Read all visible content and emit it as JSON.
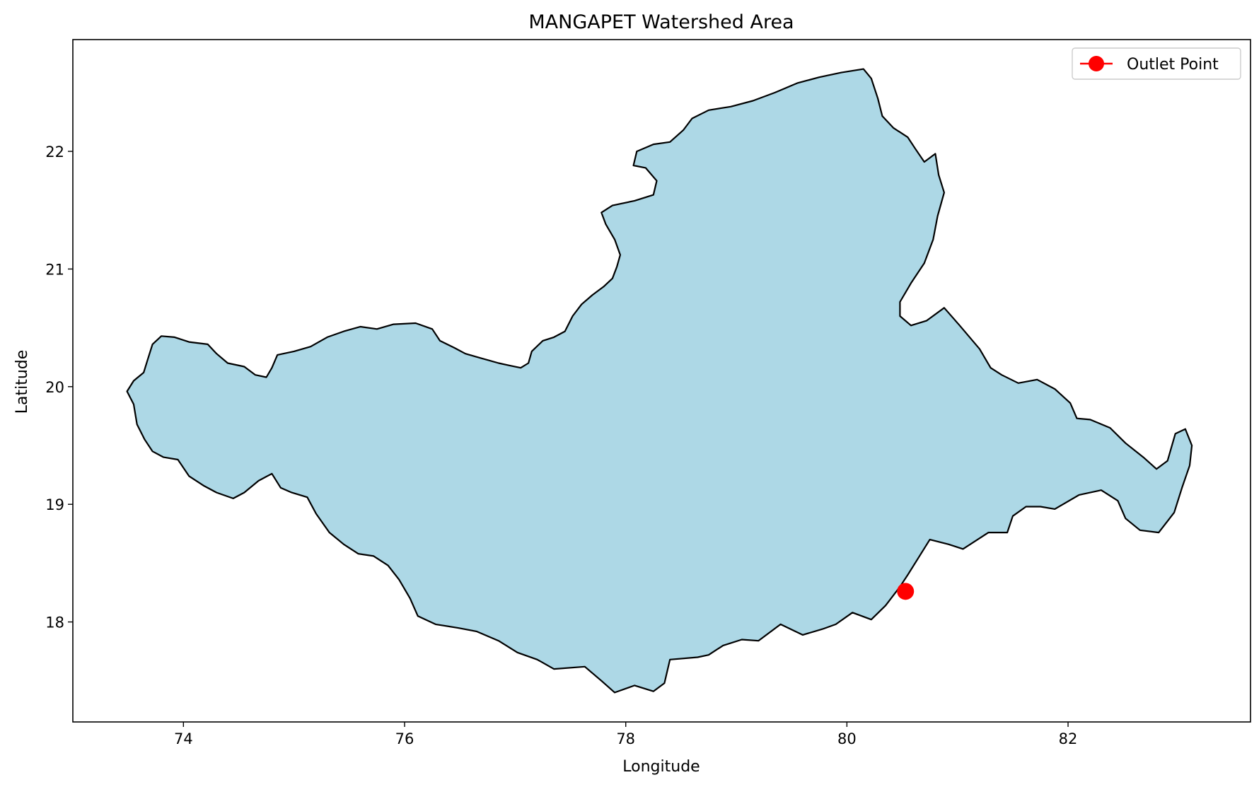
{
  "title": "MANGAPET Watershed Area",
  "xlabel": "Longitude",
  "ylabel": "Latitude",
  "legend": {
    "label": "Outlet Point",
    "placement": "top-right"
  },
  "colors": {
    "fill": "#add8e6",
    "boundary": "#000000",
    "outlet": "#ff0000"
  },
  "chart_data": {
    "type": "map",
    "xlim": [
      73.0,
      83.65
    ],
    "ylim": [
      17.15,
      22.95
    ],
    "x_ticks": [
      "74",
      "76",
      "78",
      "80",
      "82"
    ],
    "y_ticks": [
      "18",
      "19",
      "20",
      "21",
      "22"
    ],
    "grid": false,
    "outlet": {
      "lon": 80.53,
      "lat": 18.26
    },
    "boundary": [
      [
        73.49,
        19.96
      ],
      [
        73.55,
        20.05
      ],
      [
        73.64,
        20.12
      ],
      [
        73.68,
        20.24
      ],
      [
        73.72,
        20.36
      ],
      [
        73.8,
        20.43
      ],
      [
        73.92,
        20.42
      ],
      [
        74.05,
        20.38
      ],
      [
        74.22,
        20.36
      ],
      [
        74.3,
        20.28
      ],
      [
        74.4,
        20.2
      ],
      [
        74.55,
        20.17
      ],
      [
        74.65,
        20.1
      ],
      [
        74.75,
        20.08
      ],
      [
        74.8,
        20.16
      ],
      [
        74.85,
        20.27
      ],
      [
        75.0,
        20.3
      ],
      [
        75.15,
        20.34
      ],
      [
        75.3,
        20.42
      ],
      [
        75.45,
        20.47
      ],
      [
        75.6,
        20.51
      ],
      [
        75.75,
        20.49
      ],
      [
        75.9,
        20.53
      ],
      [
        76.1,
        20.54
      ],
      [
        76.25,
        20.49
      ],
      [
        76.32,
        20.39
      ],
      [
        76.45,
        20.33
      ],
      [
        76.55,
        20.28
      ],
      [
        76.7,
        20.24
      ],
      [
        76.85,
        20.2
      ],
      [
        76.95,
        20.18
      ],
      [
        77.05,
        20.16
      ],
      [
        77.12,
        20.2
      ],
      [
        77.15,
        20.3
      ],
      [
        77.25,
        20.39
      ],
      [
        77.35,
        20.42
      ],
      [
        77.45,
        20.47
      ],
      [
        77.52,
        20.6
      ],
      [
        77.6,
        20.7
      ],
      [
        77.7,
        20.78
      ],
      [
        77.8,
        20.85
      ],
      [
        77.88,
        20.92
      ],
      [
        77.92,
        21.02
      ],
      [
        77.95,
        21.12
      ],
      [
        77.9,
        21.25
      ],
      [
        77.82,
        21.38
      ],
      [
        77.78,
        21.48
      ],
      [
        77.88,
        21.54
      ],
      [
        78.08,
        21.58
      ],
      [
        78.25,
        21.63
      ],
      [
        78.28,
        21.75
      ],
      [
        78.18,
        21.86
      ],
      [
        78.07,
        21.88
      ],
      [
        78.1,
        22.0
      ],
      [
        78.25,
        22.06
      ],
      [
        78.4,
        22.08
      ],
      [
        78.52,
        22.18
      ],
      [
        78.6,
        22.28
      ],
      [
        78.75,
        22.35
      ],
      [
        78.95,
        22.38
      ],
      [
        79.15,
        22.43
      ],
      [
        79.35,
        22.5
      ],
      [
        79.55,
        22.58
      ],
      [
        79.75,
        22.63
      ],
      [
        79.95,
        22.67
      ],
      [
        80.15,
        22.7
      ],
      [
        80.22,
        22.62
      ],
      [
        80.28,
        22.45
      ],
      [
        80.32,
        22.3
      ],
      [
        80.42,
        22.2
      ],
      [
        80.55,
        22.12
      ],
      [
        80.62,
        22.02
      ],
      [
        80.7,
        21.91
      ],
      [
        80.8,
        21.98
      ],
      [
        80.83,
        21.8
      ],
      [
        80.88,
        21.65
      ],
      [
        80.82,
        21.45
      ],
      [
        80.78,
        21.25
      ],
      [
        80.7,
        21.05
      ],
      [
        80.58,
        20.88
      ],
      [
        80.48,
        20.72
      ],
      [
        80.48,
        20.6
      ],
      [
        80.58,
        20.52
      ],
      [
        80.72,
        20.56
      ],
      [
        80.88,
        20.67
      ],
      [
        81.02,
        20.52
      ],
      [
        81.2,
        20.32
      ],
      [
        81.3,
        20.16
      ],
      [
        81.4,
        20.1
      ],
      [
        81.55,
        20.03
      ],
      [
        81.72,
        20.06
      ],
      [
        81.88,
        19.98
      ],
      [
        82.02,
        19.86
      ],
      [
        82.08,
        19.73
      ],
      [
        82.2,
        19.72
      ],
      [
        82.38,
        19.65
      ],
      [
        82.52,
        19.52
      ],
      [
        82.68,
        19.4
      ],
      [
        82.8,
        19.3
      ],
      [
        82.9,
        19.37
      ],
      [
        82.97,
        19.6
      ],
      [
        83.06,
        19.64
      ],
      [
        83.12,
        19.5
      ],
      [
        83.1,
        19.33
      ],
      [
        83.03,
        19.14
      ],
      [
        82.96,
        18.93
      ],
      [
        82.82,
        18.76
      ],
      [
        82.65,
        18.78
      ],
      [
        82.52,
        18.88
      ],
      [
        82.45,
        19.03
      ],
      [
        82.3,
        19.12
      ],
      [
        82.1,
        19.08
      ],
      [
        81.88,
        18.96
      ],
      [
        81.75,
        18.98
      ],
      [
        81.62,
        18.98
      ],
      [
        81.5,
        18.9
      ],
      [
        81.45,
        18.76
      ],
      [
        81.28,
        18.76
      ],
      [
        81.05,
        18.62
      ],
      [
        80.92,
        18.66
      ],
      [
        80.75,
        18.7
      ],
      [
        80.65,
        18.55
      ],
      [
        80.55,
        18.4
      ],
      [
        80.48,
        18.3
      ],
      [
        80.35,
        18.14
      ],
      [
        80.22,
        18.02
      ],
      [
        80.05,
        18.08
      ],
      [
        79.9,
        17.98
      ],
      [
        79.78,
        17.94
      ],
      [
        79.6,
        17.89
      ],
      [
        79.4,
        17.98
      ],
      [
        79.2,
        17.84
      ],
      [
        79.05,
        17.85
      ],
      [
        78.88,
        17.8
      ],
      [
        78.75,
        17.72
      ],
      [
        78.65,
        17.7
      ],
      [
        78.4,
        17.68
      ],
      [
        78.35,
        17.48
      ],
      [
        78.25,
        17.41
      ],
      [
        78.08,
        17.46
      ],
      [
        77.9,
        17.4
      ],
      [
        77.78,
        17.5
      ],
      [
        77.63,
        17.62
      ],
      [
        77.35,
        17.6
      ],
      [
        77.2,
        17.68
      ],
      [
        77.02,
        17.74
      ],
      [
        76.85,
        17.84
      ],
      [
        76.65,
        17.92
      ],
      [
        76.48,
        17.95
      ],
      [
        76.28,
        17.98
      ],
      [
        76.12,
        18.05
      ],
      [
        76.05,
        18.2
      ],
      [
        75.95,
        18.36
      ],
      [
        75.85,
        18.48
      ],
      [
        75.72,
        18.56
      ],
      [
        75.58,
        18.58
      ],
      [
        75.45,
        18.66
      ],
      [
        75.32,
        18.76
      ],
      [
        75.2,
        18.92
      ],
      [
        75.12,
        19.06
      ],
      [
        74.98,
        19.1
      ],
      [
        74.88,
        19.14
      ],
      [
        74.8,
        19.26
      ],
      [
        74.68,
        19.2
      ],
      [
        74.55,
        19.1
      ],
      [
        74.45,
        19.05
      ],
      [
        74.3,
        19.1
      ],
      [
        74.18,
        19.16
      ],
      [
        74.05,
        19.24
      ],
      [
        73.95,
        19.38
      ],
      [
        73.82,
        19.4
      ],
      [
        73.72,
        19.45
      ],
      [
        73.65,
        19.55
      ],
      [
        73.58,
        19.68
      ],
      [
        73.55,
        19.85
      ]
    ]
  }
}
